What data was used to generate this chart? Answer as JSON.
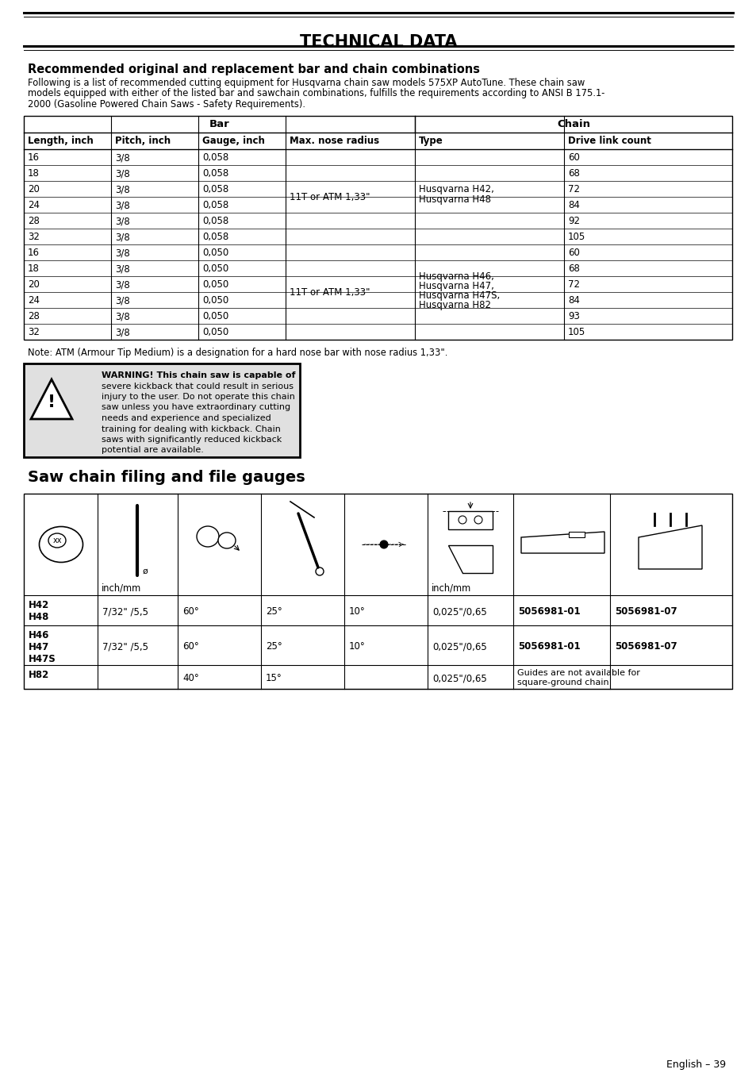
{
  "title": "TECHNICAL DATA",
  "section1_title": "Recommended original and replacement bar and chain combinations",
  "section1_intro_lines": [
    "Following is a list of recommended cutting equipment for Husqvarna chain saw models 575XP AutoTune. These chain saw",
    "models equipped with either of the listed bar and sawchain combinations, fulfills the requirements according to ANSI B 175.1-",
    "2000 (Gasoline Powered Chain Saws - Safety Requirements)."
  ],
  "table1_header_bar": "Bar",
  "table1_header_chain": "Chain",
  "table1_col_headers": [
    "Length, inch",
    "Pitch, inch",
    "Gauge, inch",
    "Max. nose radius",
    "Type",
    "Drive link count"
  ],
  "table1_col_widths": [
    110,
    110,
    110,
    163,
    188,
    212
  ],
  "table1_rows": [
    [
      "16",
      "3/8",
      "0,058",
      "60"
    ],
    [
      "18",
      "3/8",
      "0,058",
      "68"
    ],
    [
      "20",
      "3/8",
      "0,058",
      "72"
    ],
    [
      "24",
      "3/8",
      "0,058",
      "84"
    ],
    [
      "28",
      "3/8",
      "0,058",
      "92"
    ],
    [
      "32",
      "3/8",
      "0,058",
      "105"
    ],
    [
      "16",
      "3/8",
      "0,050",
      "60"
    ],
    [
      "18",
      "3/8",
      "0,050",
      "68"
    ],
    [
      "20",
      "3/8",
      "0,050",
      "72"
    ],
    [
      "24",
      "3/8",
      "0,050",
      "84"
    ],
    [
      "28",
      "3/8",
      "0,050",
      "93"
    ],
    [
      "32",
      "3/8",
      "0,050",
      "105"
    ]
  ],
  "nose_text": "11T or ATM 1,33\"",
  "type_g1_lines": [
    "Husqvarna H42,",
    "Husqvarna H48"
  ],
  "type_g2_lines": [
    "Husqvarna H46,",
    "Husqvarna H47,",
    "Husqvarna H47S,",
    "Husqvarna H82"
  ],
  "note_text": "Note: ATM (Armour Tip Medium) is a designation for a hard nose bar with nose radius 1,33\".",
  "warning_lines": [
    "WARNING! This chain saw is capable of",
    "severe kickback that could result in serious",
    "injury to the user. Do not operate this chain",
    "saw unless you have extraordinary cutting",
    "needs and experience and specialized",
    "training for dealing with kickback. Chain",
    "saws with significantly reduced kickback",
    "potential are available."
  ],
  "section2_title": "Saw chain filing and file gauges",
  "table2_col_widths": [
    93,
    101,
    105,
    105,
    105,
    108,
    122,
    154
  ],
  "table2_data_rows": [
    [
      "H42\nH48",
      "7/32\" /5,5",
      "60°",
      "25°",
      "10°",
      "0,025\"/0,65",
      "5056981-01",
      "5056981-07"
    ],
    [
      "H46\nH47\nH47S",
      "7/32\" /5,5",
      "60°",
      "25°",
      "10°",
      "0,025\"/0,65",
      "5056981-01",
      "5056981-07"
    ],
    [
      "H82",
      "",
      "40°",
      "15°",
      "",
      "0,025\"/0,65",
      "Guides are not available for\nsquare-ground chain",
      ""
    ]
  ],
  "footer_text": "English – 39",
  "bg_color": "#ffffff"
}
